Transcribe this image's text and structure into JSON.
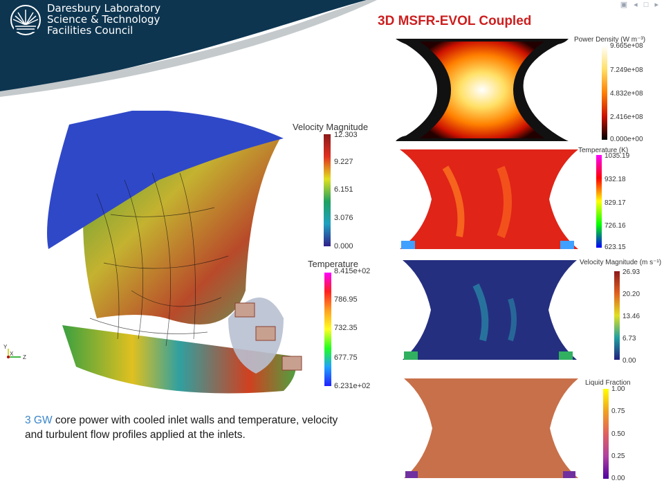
{
  "header": {
    "logo_lines": [
      "Daresbury Laboratory",
      "Science & Technology",
      "Facilities Council"
    ],
    "nav_icons": [
      "page-icon",
      "prev-icon",
      "frame-icon",
      "next-icon"
    ]
  },
  "title": "3D MSFR-EVOL Coupled",
  "caption": {
    "highlight": "3 GW",
    "text": " core power with cooled inlet walls and temperature, velocity and turbulent flow profiles applied at the inlets."
  },
  "main_legends": {
    "velocity": {
      "title": "Velocity Magnitude",
      "values": [
        "12.303",
        "9.227",
        "6.151",
        "3.076",
        "0.000"
      ]
    },
    "temperature": {
      "title": "Temperature",
      "values": [
        "8.415e+02",
        "786.95",
        "732.35",
        "677.75",
        "6.231e+02"
      ]
    }
  },
  "axes_triad": {
    "y": "Y",
    "x": "X",
    "z": "Z"
  },
  "side_panels": [
    {
      "title": "Power Density (W m⁻³)",
      "values": [
        "9.665e+08",
        "7.249e+08",
        "4.832e+08",
        "2.416e+08",
        "0.000e+00"
      ],
      "colors": [
        "#ffffff",
        "#ffe066",
        "#ff8000",
        "#cc1100",
        "#000000"
      ]
    },
    {
      "title": "Temperature (K)",
      "values": [
        "1035.19",
        "932.18",
        "829.17",
        "726.16",
        "623.15"
      ],
      "colors": [
        "#ff00ff",
        "#ff0000",
        "#ffff00",
        "#00ff00",
        "#0000ff"
      ]
    },
    {
      "title": "Velocity  Magnitude (m s⁻¹)",
      "values": [
        "26.93",
        "20.20",
        "13.46",
        "6.73",
        "0.00"
      ],
      "colors": [
        "#8b1a1a",
        "#e06020",
        "#e0e020",
        "#20a0a0",
        "#202080"
      ]
    },
    {
      "title": "Liquid Fraction",
      "values": [
        "1.00",
        "0.75",
        "0.50",
        "0.25",
        "0.00"
      ],
      "colors": [
        "#ffff00",
        "#f0a020",
        "#e06060",
        "#b040a0",
        "#5000a0"
      ]
    }
  ]
}
